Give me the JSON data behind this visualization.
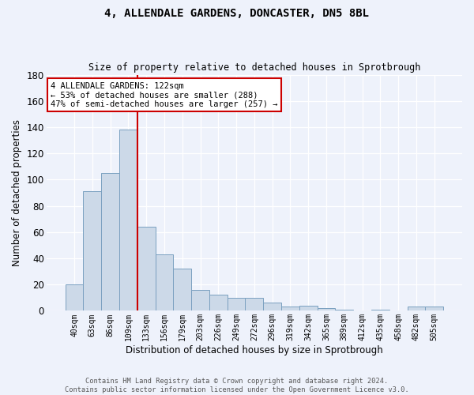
{
  "title": "4, ALLENDALE GARDENS, DONCASTER, DN5 8BL",
  "subtitle": "Size of property relative to detached houses in Sprotbrough",
  "xlabel": "Distribution of detached houses by size in Sprotbrough",
  "ylabel": "Number of detached properties",
  "bar_labels": [
    "40sqm",
    "63sqm",
    "86sqm",
    "109sqm",
    "133sqm",
    "156sqm",
    "179sqm",
    "203sqm",
    "226sqm",
    "249sqm",
    "272sqm",
    "296sqm",
    "319sqm",
    "342sqm",
    "365sqm",
    "389sqm",
    "412sqm",
    "435sqm",
    "458sqm",
    "482sqm",
    "505sqm"
  ],
  "bar_values": [
    20,
    91,
    105,
    138,
    64,
    43,
    32,
    16,
    12,
    10,
    10,
    6,
    3,
    4,
    2,
    1,
    0,
    1,
    0,
    3,
    3
  ],
  "bar_color": "#ccd9e8",
  "bar_edge_color": "#7aa0c0",
  "ylim": [
    0,
    180
  ],
  "yticks": [
    0,
    20,
    40,
    60,
    80,
    100,
    120,
    140,
    160,
    180
  ],
  "vline_x": 3.5,
  "vline_color": "#cc0000",
  "annotation_line1": "4 ALLENDALE GARDENS: 122sqm",
  "annotation_line2": "← 53% of detached houses are smaller (288)",
  "annotation_line3": "47% of semi-detached houses are larger (257) →",
  "annotation_box_color": "#ffffff",
  "annotation_box_edge_color": "#cc0000",
  "footer_full": "Contains HM Land Registry data © Crown copyright and database right 2024.\nContains public sector information licensed under the Open Government Licence v3.0.",
  "bg_color": "#eef2fb",
  "grid_color": "#ffffff"
}
